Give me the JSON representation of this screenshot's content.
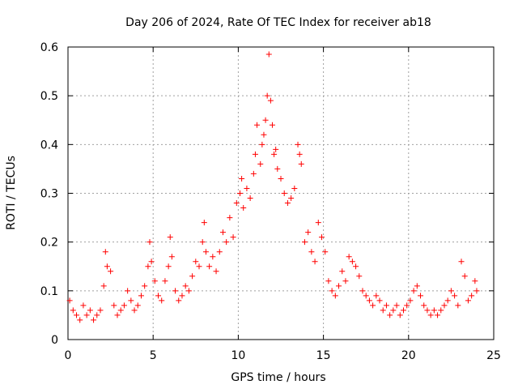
{
  "chart_data": {
    "type": "scatter",
    "title": "Day 206 of 2024, Rate Of TEC Index for receiver ab18",
    "xlabel": "GPS time / hours",
    "ylabel": "ROTI / TECUs",
    "xlim": [
      0,
      25
    ],
    "ylim": [
      0,
      0.6
    ],
    "xticks": [
      "0",
      "5",
      "10",
      "15",
      "20",
      "25"
    ],
    "yticks": [
      "0",
      "0.1",
      "0.2",
      "0.3",
      "0.4",
      "0.5",
      "0.6"
    ],
    "grid": true,
    "marker": "plus",
    "color": "#ff0000",
    "series": [
      {
        "x": [
          0.1,
          0.3,
          0.5,
          0.7,
          0.9,
          1.1,
          1.3,
          1.5,
          1.7,
          1.9,
          2.1,
          2.2,
          2.3,
          2.5,
          2.7,
          2.9,
          3.1,
          3.3,
          3.5,
          3.7,
          3.9,
          4.1,
          4.3,
          4.5,
          4.7,
          4.8,
          4.9,
          5.1,
          5.3,
          5.5,
          5.7,
          5.9,
          6.0,
          6.1,
          6.3,
          6.5,
          6.7,
          6.9,
          7.1,
          7.3,
          7.5,
          7.7,
          7.9,
          8.0,
          8.1,
          8.3,
          8.5,
          8.7,
          8.9,
          9.1,
          9.3,
          9.5,
          9.7,
          9.9,
          10.1,
          10.2,
          10.3,
          10.5,
          10.7,
          10.9,
          11.0,
          11.1,
          11.3,
          11.4,
          11.5,
          11.6,
          11.7,
          11.8,
          11.9,
          12.0,
          12.1,
          12.2,
          12.3,
          12.5,
          12.7,
          12.9,
          13.1,
          13.3,
          13.5,
          13.6,
          13.7,
          13.9,
          14.1,
          14.3,
          14.5,
          14.7,
          14.9,
          15.1,
          15.3,
          15.5,
          15.7,
          15.9,
          16.1,
          16.3,
          16.5,
          16.7,
          16.9,
          17.1,
          17.3,
          17.5,
          17.7,
          17.9,
          18.1,
          18.3,
          18.5,
          18.7,
          18.9,
          19.1,
          19.3,
          19.5,
          19.7,
          19.9,
          20.1,
          20.3,
          20.5,
          20.7,
          20.9,
          21.1,
          21.3,
          21.5,
          21.7,
          21.9,
          22.1,
          22.3,
          22.5,
          22.7,
          22.9,
          23.1,
          23.3,
          23.5,
          23.7,
          23.9,
          24.0
        ],
        "y": [
          0.08,
          0.06,
          0.05,
          0.04,
          0.07,
          0.05,
          0.06,
          0.04,
          0.05,
          0.06,
          0.11,
          0.18,
          0.15,
          0.14,
          0.07,
          0.05,
          0.06,
          0.07,
          0.1,
          0.08,
          0.06,
          0.07,
          0.09,
          0.11,
          0.15,
          0.2,
          0.16,
          0.12,
          0.09,
          0.08,
          0.12,
          0.15,
          0.21,
          0.17,
          0.1,
          0.08,
          0.09,
          0.11,
          0.1,
          0.13,
          0.16,
          0.15,
          0.2,
          0.24,
          0.18,
          0.15,
          0.17,
          0.14,
          0.18,
          0.22,
          0.2,
          0.25,
          0.21,
          0.28,
          0.3,
          0.33,
          0.27,
          0.31,
          0.29,
          0.34,
          0.38,
          0.44,
          0.36,
          0.4,
          0.42,
          0.45,
          0.5,
          0.585,
          0.49,
          0.44,
          0.38,
          0.39,
          0.35,
          0.33,
          0.3,
          0.28,
          0.29,
          0.31,
          0.4,
          0.38,
          0.36,
          0.2,
          0.22,
          0.18,
          0.16,
          0.24,
          0.21,
          0.18,
          0.12,
          0.1,
          0.09,
          0.11,
          0.14,
          0.12,
          0.17,
          0.16,
          0.15,
          0.13,
          0.1,
          0.09,
          0.08,
          0.07,
          0.09,
          0.08,
          0.06,
          0.07,
          0.05,
          0.06,
          0.07,
          0.05,
          0.06,
          0.07,
          0.08,
          0.1,
          0.11,
          0.09,
          0.07,
          0.06,
          0.05,
          0.06,
          0.05,
          0.06,
          0.07,
          0.08,
          0.1,
          0.09,
          0.07,
          0.16,
          0.13,
          0.08,
          0.09,
          0.12,
          0.1
        ]
      }
    ]
  }
}
